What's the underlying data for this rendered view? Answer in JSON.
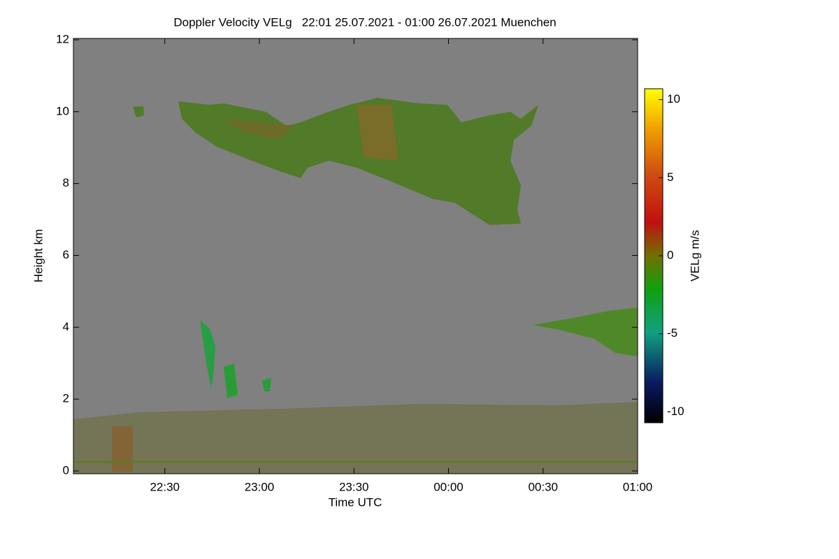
{
  "chart_data": {
    "type": "heatmap",
    "title": "Doppler Velocity VELg   22:01 25.07.2021 - 01:00 26.07.2021 Muenchen",
    "xlabel": "Time UTC",
    "ylabel": "Height km",
    "xlim": [
      22.0167,
      25
    ],
    "xticks": [
      {
        "value": 22.5,
        "label": "22:30"
      },
      {
        "value": 23,
        "label": "23:00"
      },
      {
        "value": 23.5,
        "label": "23:30"
      },
      {
        "value": 24,
        "label": "00:00"
      },
      {
        "value": 24.5,
        "label": "00:30"
      },
      {
        "value": 25,
        "label": "01:00"
      }
    ],
    "ylim": [
      0,
      12
    ],
    "yticks": [
      0,
      2,
      4,
      6,
      8,
      10,
      12
    ],
    "colorbar": {
      "label": "VELg m/s",
      "lim": [
        -10.7,
        10.7
      ],
      "ticks": [
        10,
        5,
        0,
        -5,
        -10
      ]
    }
  }
}
